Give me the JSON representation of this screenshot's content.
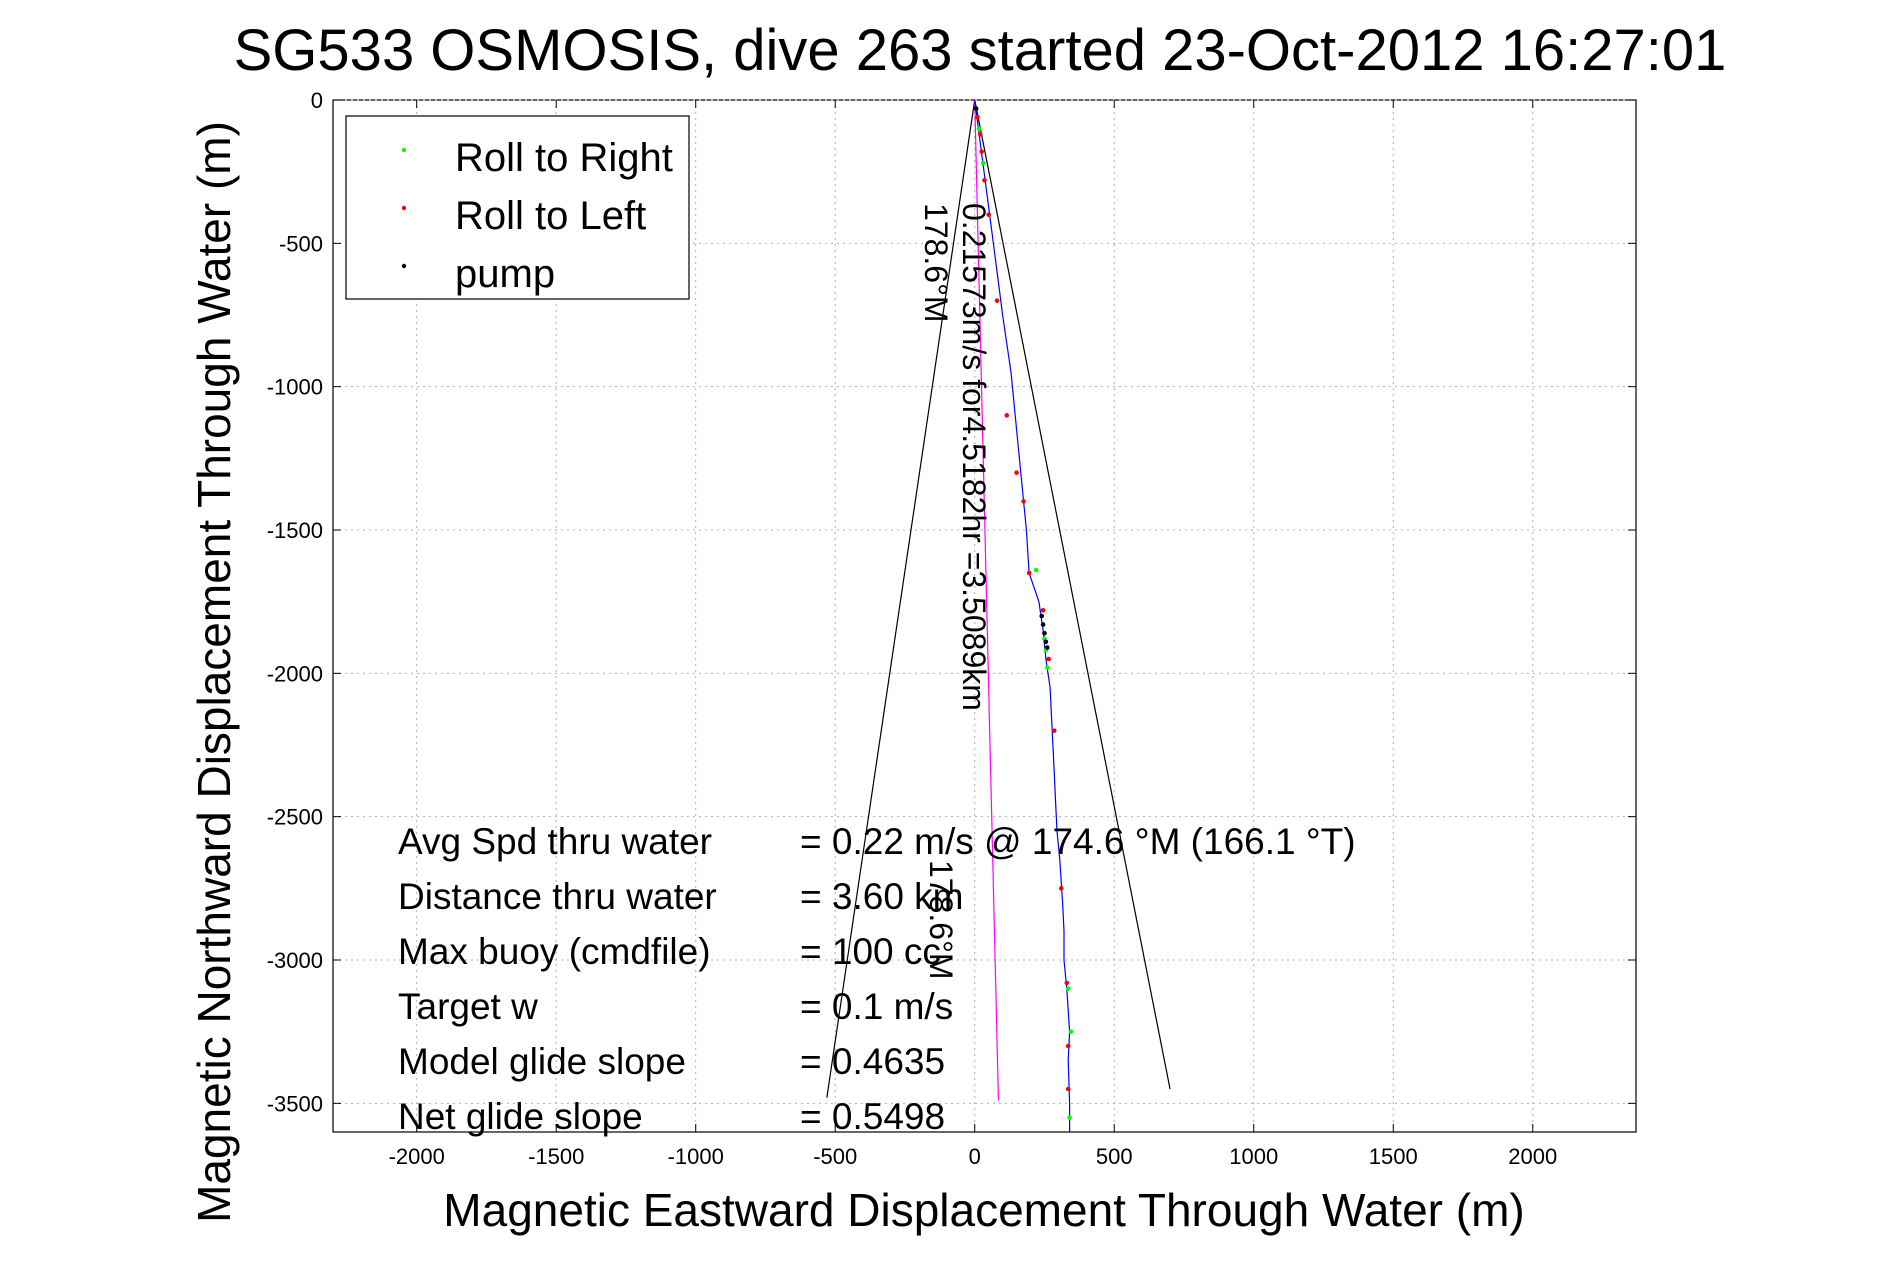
{
  "chart_data": {
    "type": "scatter",
    "title": "SG533 OSMOSIS, dive 263 started 23-Oct-2012 16:27:01",
    "xlabel": "Magnetic Eastward Displacement Through Water (m)",
    "ylabel": "Magnetic Northward Displacement Through Water (m)",
    "xlim": [
      -2300,
      2370
    ],
    "ylim": [
      -3600,
      0
    ],
    "xticks": [
      -2000,
      -1500,
      -1000,
      -500,
      0,
      500,
      1000,
      1500,
      2000
    ],
    "yticks": [
      0,
      -500,
      -1000,
      -1500,
      -2000,
      -2500,
      -3000,
      -3500
    ],
    "grid": true,
    "legend_position": "top-left",
    "legend": [
      {
        "label": "Roll to Right",
        "color": "#00ff00"
      },
      {
        "label": "Roll to Left",
        "color": "#ff0000"
      },
      {
        "label": "pump",
        "color": "#000000"
      }
    ],
    "track": {
      "name": "glider track",
      "color": "#0000ff",
      "x": [
        0,
        20,
        40,
        60,
        80,
        100,
        130,
        150,
        170,
        185,
        195,
        230,
        245,
        255,
        270,
        275,
        280,
        285,
        290,
        295,
        305,
        315,
        320,
        320,
        325,
        330,
        340,
        335,
        340,
        340
      ],
      "y": [
        0,
        -150,
        -300,
        -450,
        -600,
        -750,
        -950,
        -1150,
        -1350,
        -1500,
        -1650,
        -1750,
        -1850,
        -1950,
        -2050,
        -2150,
        -2250,
        -2350,
        -2450,
        -2550,
        -2650,
        -2800,
        -2900,
        -3000,
        -3050,
        -3100,
        -3250,
        -3350,
        -3500,
        -3600
      ]
    },
    "roll_left": {
      "x": [
        10,
        20,
        25,
        35,
        50,
        80,
        115,
        150,
        175,
        195,
        245,
        265,
        285,
        310,
        330,
        335,
        335
      ],
      "y": [
        -60,
        -120,
        -180,
        -280,
        -400,
        -700,
        -1100,
        -1300,
        -1400,
        -1650,
        -1780,
        -1950,
        -2200,
        -2750,
        -3080,
        -3300,
        -3450
      ]
    },
    "roll_right": {
      "x": [
        15,
        30,
        220,
        250,
        255,
        260,
        335,
        345,
        340
      ],
      "y": [
        -100,
        -220,
        -1640,
        -1880,
        -1920,
        -1980,
        -3100,
        -3250,
        -3550
      ]
    },
    "pump": {
      "x": [
        5,
        240,
        245,
        250,
        255,
        260
      ],
      "y": [
        -30,
        -1800,
        -1830,
        -1860,
        -1890,
        -1910
      ]
    },
    "heading_lines": [
      {
        "name": "cone-left",
        "color": "#000000",
        "x": [
          0,
          -530
        ],
        "y": [
          0,
          -3480
        ]
      },
      {
        "name": "cone-right",
        "color": "#000000",
        "x": [
          0,
          700
        ],
        "y": [
          0,
          -3450
        ]
      },
      {
        "name": "mean-heading",
        "color": "#ff00ff",
        "x": [
          0,
          85
        ],
        "y": [
          0,
          -3490
        ]
      }
    ],
    "annotations": {
      "heading_upper": "178.6°M",
      "speed_line": "0.21573m/s for4.5182hr =3.5089km",
      "heading_lower": "178.6°M"
    },
    "summary": [
      {
        "label": "Avg Spd thru water",
        "value": "=  0.22 m/s @ 174.6 °M (166.1 °T)"
      },
      {
        "label": "Distance thru water",
        "value": "=  3.60 km"
      },
      {
        "label": "Max buoy (cmdfile)",
        "value": "= 100 cc"
      },
      {
        "label": "Target w",
        "value": "= 0.1 m/s"
      },
      {
        "label": "Model glide slope",
        "value": "= 0.4635"
      },
      {
        "label": "Net glide slope",
        "value": "= 0.5498"
      }
    ]
  }
}
